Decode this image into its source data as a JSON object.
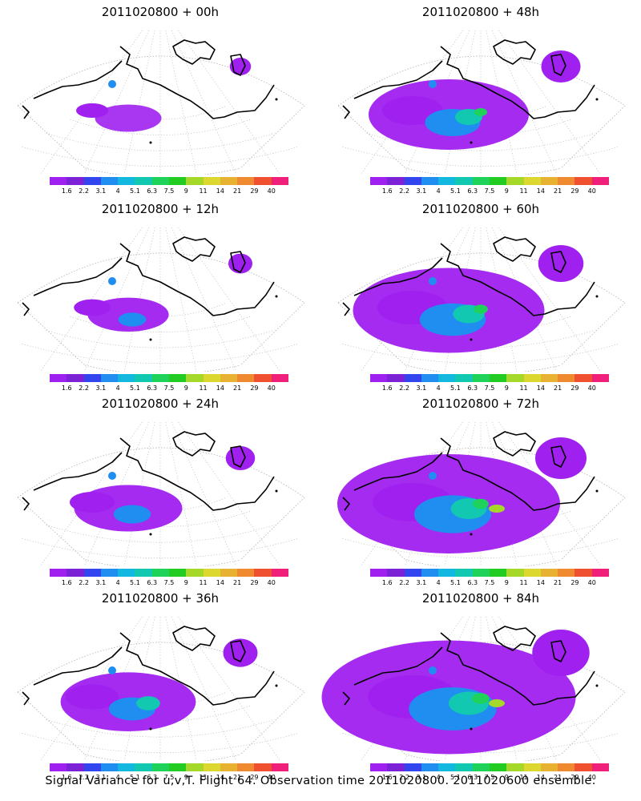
{
  "panels": [
    {
      "title": "2011020800 + 00h",
      "level": 0.05
    },
    {
      "title": "2011020800 + 48h",
      "level": 0.5
    },
    {
      "title": "2011020800 + 12h",
      "level": 0.12
    },
    {
      "title": "2011020800 + 60h",
      "level": 0.65
    },
    {
      "title": "2011020800 + 24h",
      "level": 0.25
    },
    {
      "title": "2011020800 + 72h",
      "level": 0.8
    },
    {
      "title": "2011020800 + 36h",
      "level": 0.38
    },
    {
      "title": "2011020800 + 84h",
      "level": 0.95
    }
  ],
  "colorbar": {
    "labels": [
      "1.6",
      "2.2",
      "3.1",
      "4",
      "5.1",
      "6.3",
      "7.5",
      "9",
      "11",
      "14",
      "21",
      "29",
      "40"
    ],
    "colors": [
      "#a020f0",
      "#7b22d6",
      "#3345ef",
      "#1f8ef0",
      "#12b8e0",
      "#12c8b0",
      "#1fd25a",
      "#22cc22",
      "#a6d82a",
      "#dcd830",
      "#e7b232",
      "#ef8a30",
      "#ef5030",
      "#f0207a"
    ]
  },
  "footer": "Signal Variance for u,v,T. Flight 64. Observation time 2011020800. 2011020600 ensemble."
}
